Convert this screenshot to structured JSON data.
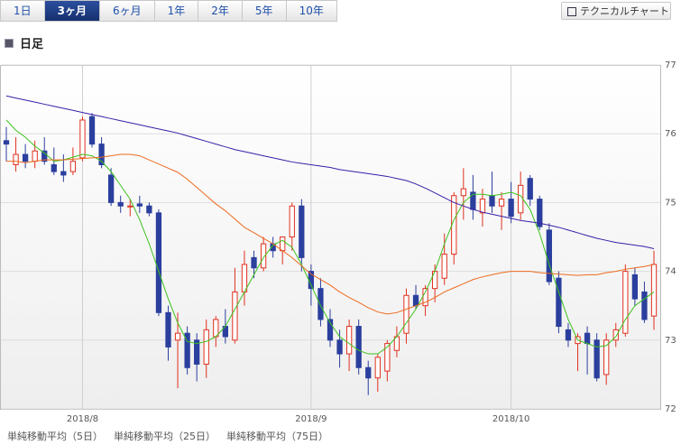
{
  "tabs": [
    {
      "label": "1日"
    },
    {
      "label": "3ヶ月",
      "selected": true
    },
    {
      "label": "6ヶ月"
    },
    {
      "label": "1年"
    },
    {
      "label": "2年"
    },
    {
      "label": "5年"
    },
    {
      "label": "10年"
    }
  ],
  "technical_button": "テクニカルチャート",
  "period_label": "日足",
  "chart_data": {
    "type": "candlestick",
    "ylim": [
      72,
      77
    ],
    "yticks": [
      72,
      73,
      74,
      75,
      76,
      77
    ],
    "xticks": [
      {
        "value": 8,
        "label": "2018/8"
      },
      {
        "value": 32,
        "label": "2018/9"
      },
      {
        "value": 53,
        "label": "2018/10"
      }
    ],
    "up_color": "#e0301e",
    "down_color": "#2b3f9e",
    "open": [
      75.9,
      75.55,
      75.7,
      75.6,
      75.75,
      75.55,
      75.45,
      75.45,
      75.65,
      76.25,
      75.85,
      75.4,
      75.0,
      74.95,
      74.98,
      74.95,
      74.85,
      73.4,
      73.0,
      73.1,
      73.0,
      72.65,
      73.05,
      73.2,
      73.0,
      73.7,
      74.2,
      74.05,
      74.4,
      74.3,
      74.5,
      74.95,
      74.0,
      73.75,
      73.3,
      73.0,
      72.8,
      73.2,
      72.6,
      72.45,
      72.55,
      72.85,
      73.1,
      73.65,
      73.5,
      73.75,
      73.9,
      74.25,
      75.1,
      75.15,
      74.85,
      75.1,
      74.95,
      75.05,
      74.85,
      75.35,
      75.05,
      74.6,
      73.9,
      73.15,
      72.95,
      73.1,
      73.0,
      72.5,
      73.0,
      73.1,
      73.95,
      73.7,
      73.35
    ],
    "high": [
      76.1,
      75.95,
      75.85,
      75.9,
      75.95,
      75.8,
      75.7,
      75.8,
      76.25,
      76.3,
      75.95,
      75.5,
      75.1,
      75.05,
      75.1,
      75.0,
      74.9,
      73.5,
      73.4,
      73.2,
      73.1,
      73.3,
      73.35,
      73.45,
      74.05,
      74.3,
      74.3,
      74.5,
      74.5,
      74.5,
      75.0,
      75.05,
      74.1,
      73.9,
      73.45,
      73.15,
      73.3,
      73.3,
      72.7,
      72.8,
      73.0,
      73.2,
      73.75,
      73.8,
      73.8,
      74.1,
      74.55,
      75.15,
      75.5,
      75.4,
      75.2,
      75.45,
      75.15,
      75.3,
      75.45,
      75.4,
      75.1,
      74.7,
      74.0,
      73.25,
      73.1,
      73.2,
      73.1,
      73.1,
      73.25,
      74.1,
      74.05,
      73.85,
      74.3
    ],
    "low": [
      75.6,
      75.45,
      75.5,
      75.5,
      75.55,
      75.4,
      75.3,
      75.4,
      75.6,
      75.8,
      75.5,
      74.95,
      74.85,
      74.8,
      74.85,
      74.8,
      73.35,
      72.7,
      72.3,
      72.5,
      72.4,
      72.45,
      72.9,
      72.95,
      72.95,
      73.5,
      73.9,
      74.0,
      74.2,
      74.1,
      74.3,
      74.0,
      73.5,
      73.2,
      72.9,
      72.6,
      72.55,
      72.5,
      72.2,
      72.25,
      72.4,
      72.75,
      72.95,
      73.45,
      73.35,
      73.55,
      73.8,
      74.1,
      74.75,
      74.75,
      74.65,
      74.85,
      74.6,
      74.7,
      74.75,
      74.95,
      74.6,
      73.8,
      73.1,
      72.9,
      72.55,
      72.5,
      72.4,
      72.35,
      72.9,
      73.05,
      73.5,
      73.25,
      73.15
    ],
    "close": [
      75.85,
      75.7,
      75.6,
      75.75,
      75.6,
      75.45,
      75.4,
      75.6,
      76.2,
      75.85,
      75.55,
      75.0,
      74.95,
      74.95,
      74.95,
      74.85,
      73.4,
      72.9,
      73.1,
      72.6,
      72.65,
      73.15,
      73.3,
      73.05,
      73.7,
      74.1,
      74.05,
      74.4,
      74.3,
      74.5,
      74.95,
      74.2,
      73.75,
      73.3,
      73.0,
      72.8,
      73.2,
      72.6,
      72.45,
      72.75,
      72.95,
      73.05,
      73.65,
      73.5,
      73.75,
      74.0,
      74.25,
      75.1,
      75.2,
      74.9,
      75.05,
      74.95,
      75.05,
      74.8,
      75.25,
      75.05,
      74.65,
      73.85,
      73.2,
      73.0,
      73.05,
      72.95,
      72.45,
      73.0,
      73.15,
      74.0,
      73.6,
      73.3,
      74.1
    ],
    "series": [
      {
        "name": "単純移動平均（5日）",
        "color": "#3cc21c",
        "values": [
          76.2,
          76.05,
          75.95,
          75.82,
          75.72,
          75.6,
          75.62,
          75.66,
          75.7,
          75.68,
          75.6,
          75.45,
          75.25,
          75.05,
          74.75,
          74.4,
          74.0,
          73.6,
          73.25,
          72.98,
          72.95,
          72.98,
          73.05,
          73.2,
          73.45,
          73.7,
          73.95,
          74.2,
          74.38,
          74.45,
          74.35,
          74.1,
          73.8,
          73.5,
          73.25,
          73.05,
          72.95,
          72.85,
          72.8,
          72.8,
          72.9,
          73.05,
          73.25,
          73.45,
          73.7,
          74.0,
          74.4,
          74.75,
          75.0,
          75.12,
          75.12,
          75.1,
          75.12,
          75.15,
          75.1,
          74.9,
          74.55,
          74.1,
          73.7,
          73.3,
          73.0,
          72.95,
          72.9,
          72.92,
          73.05,
          73.3,
          73.5,
          73.6,
          73.7
        ]
      },
      {
        "name": "単純移動平均（25日）",
        "color": "#ee6a1e",
        "values": [
          75.6,
          75.6,
          75.58,
          75.6,
          75.62,
          75.62,
          75.62,
          75.63,
          75.64,
          75.65,
          75.66,
          75.68,
          75.7,
          75.7,
          75.68,
          75.62,
          75.56,
          75.5,
          75.44,
          75.34,
          75.22,
          75.1,
          74.98,
          74.88,
          74.76,
          74.64,
          74.56,
          74.48,
          74.4,
          74.3,
          74.2,
          74.08,
          73.96,
          73.88,
          73.8,
          73.7,
          73.62,
          73.55,
          73.47,
          73.41,
          73.38,
          73.4,
          73.45,
          73.5,
          73.55,
          73.62,
          73.7,
          73.76,
          73.82,
          73.88,
          73.92,
          73.95,
          73.98,
          74.0,
          74.0,
          74.0,
          73.98,
          73.97,
          73.96,
          73.95,
          73.94,
          73.95,
          73.95,
          73.98,
          74.0,
          74.03,
          74.05,
          74.07,
          74.1
        ]
      },
      {
        "name": "単純移動平均（75日）",
        "color": "#3a1fa8",
        "values": [
          76.55,
          76.52,
          76.49,
          76.46,
          76.43,
          76.4,
          76.37,
          76.34,
          76.31,
          76.28,
          76.25,
          76.22,
          76.19,
          76.16,
          76.13,
          76.1,
          76.07,
          76.04,
          76.01,
          75.97,
          75.93,
          75.89,
          75.85,
          75.81,
          75.77,
          75.74,
          75.71,
          75.68,
          75.65,
          75.62,
          75.59,
          75.57,
          75.55,
          75.53,
          75.51,
          75.48,
          75.46,
          75.44,
          75.42,
          75.4,
          75.38,
          75.35,
          75.32,
          75.27,
          75.21,
          75.14,
          75.07,
          75.0,
          74.95,
          74.9,
          74.86,
          74.83,
          74.8,
          74.77,
          74.74,
          74.72,
          74.7,
          74.67,
          74.64,
          74.6,
          74.56,
          74.52,
          74.48,
          74.45,
          74.42,
          74.4,
          74.38,
          74.36,
          74.33
        ]
      }
    ]
  }
}
